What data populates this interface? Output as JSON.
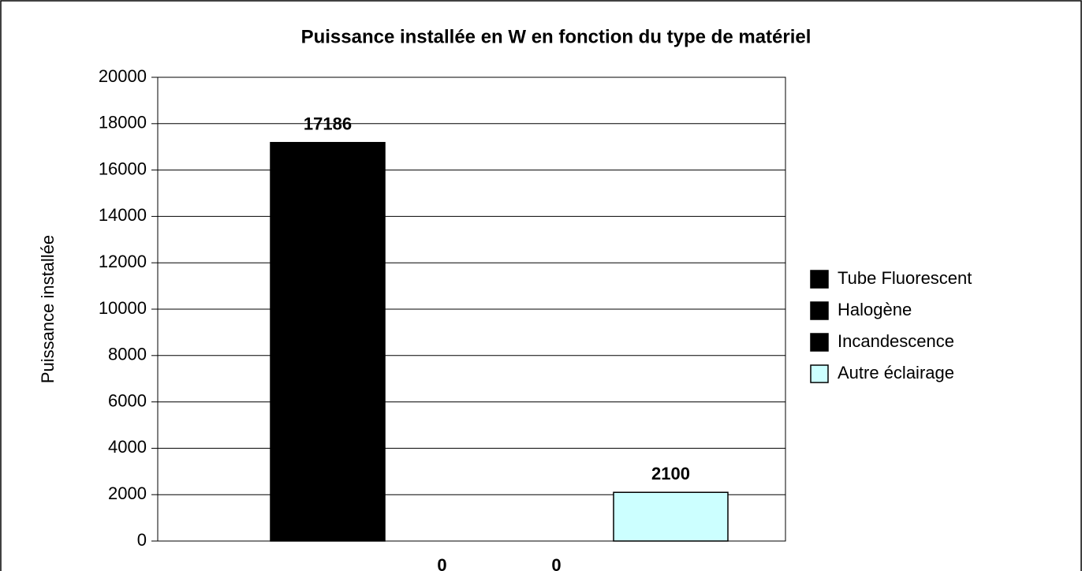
{
  "chart_data": {
    "type": "bar",
    "title": "Puissance installée en W en fonction du type de matériel",
    "y_label": "Puissance installée",
    "categories": [
      null
    ],
    "series": [
      {
        "name": "Tube Fluorescent",
        "color": "#000000",
        "values": [
          17186
        ]
      },
      {
        "name": "Halogène",
        "color": "#000000",
        "values": [
          0
        ]
      },
      {
        "name": "Incandescence",
        "color": "#000000",
        "values": [
          0
        ]
      },
      {
        "name": "Autre éclairage",
        "color": "#ccffff",
        "values": [
          2100
        ]
      }
    ],
    "ylim": [
      0,
      20000
    ],
    "yticks": [
      0,
      2000,
      4000,
      6000,
      8000,
      10000,
      12000,
      14000,
      16000,
      18000,
      20000
    ],
    "grid": true,
    "legend": "right"
  }
}
